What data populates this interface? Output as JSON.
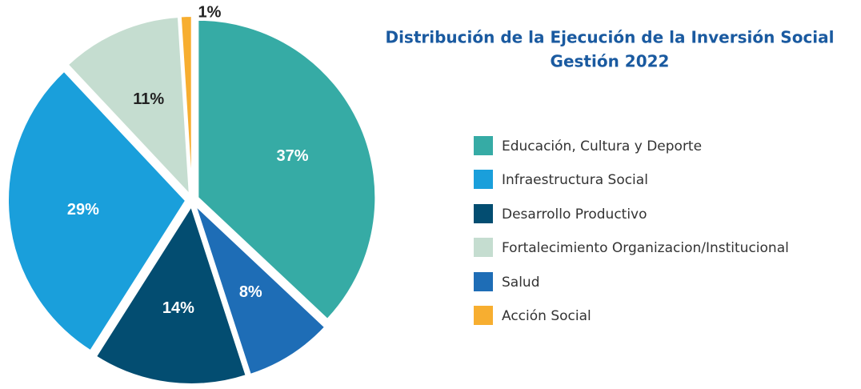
{
  "chart_data": {
    "type": "pie",
    "title": "Distribución de la Ejecución de la Inversión Social",
    "subtitle": "Gestión 2022",
    "categories": [
      "Educación, Cultura y Deporte",
      "Salud",
      "Desarrollo Productivo",
      "Infraestructura Social",
      "Fortalecimiento Organizacion/Institucional",
      "Acción Social"
    ],
    "values": [
      37,
      8,
      14,
      29,
      11,
      1
    ],
    "value_labels": [
      "37%",
      "8%",
      "14%",
      "29%",
      "11%",
      "1%"
    ],
    "colors": [
      "#36aba5",
      "#1e6db6",
      "#034d71",
      "#1a9fdb",
      "#c5ddd0",
      "#f7ae30"
    ]
  }
}
